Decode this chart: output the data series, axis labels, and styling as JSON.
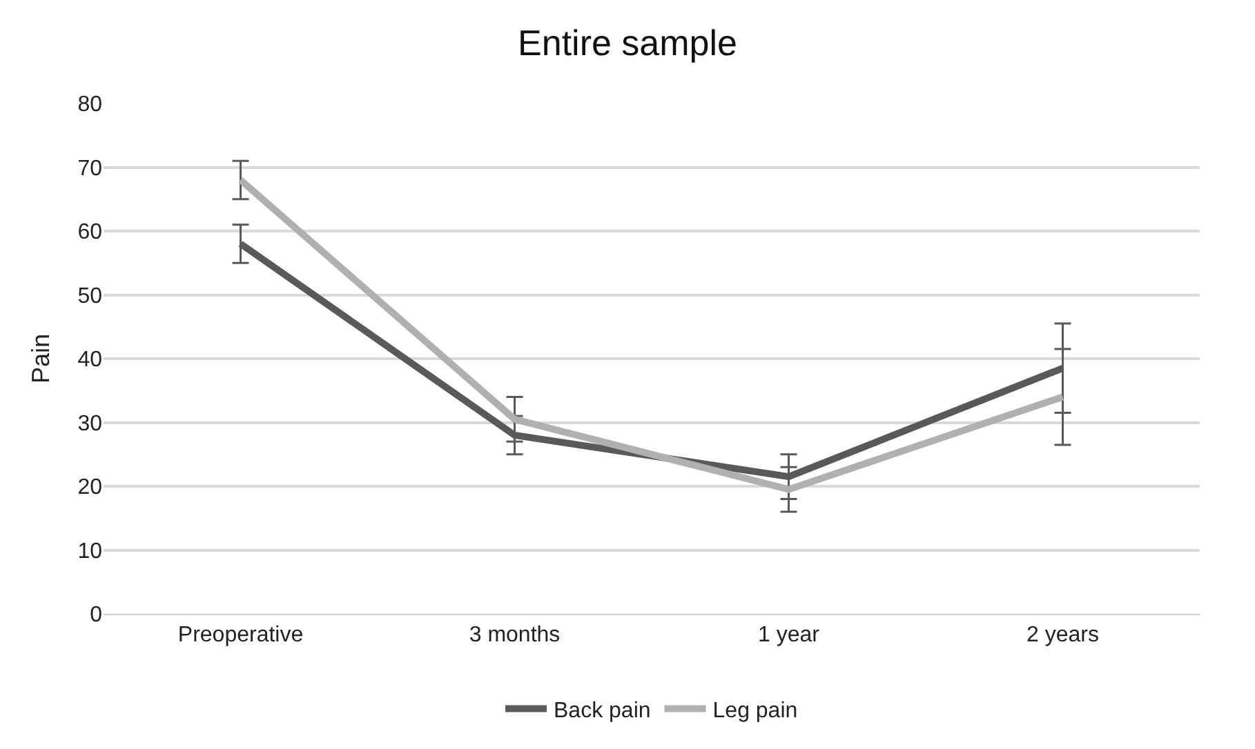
{
  "chart_data": {
    "type": "line",
    "title": "Entire sample",
    "ylabel": "Pain",
    "categories": [
      "Preoperative",
      "3 months",
      "1 year",
      "2 years"
    ],
    "series": [
      {
        "name": "Back pain",
        "color": "#595959",
        "values": [
          58,
          28,
          21.5,
          38.5
        ],
        "errors": [
          3,
          3,
          3.5,
          7
        ]
      },
      {
        "name": "Leg pain",
        "color": "#b0b0b0",
        "values": [
          68,
          30.5,
          19.5,
          34
        ],
        "errors": [
          3,
          3.5,
          3.5,
          7.5
        ]
      }
    ],
    "ylim": [
      0,
      80
    ],
    "yticks": [
      0,
      10,
      20,
      30,
      40,
      50,
      60,
      70,
      80
    ],
    "grid": "y",
    "legend": "bottom",
    "marker": "none",
    "line_style": "solid"
  }
}
